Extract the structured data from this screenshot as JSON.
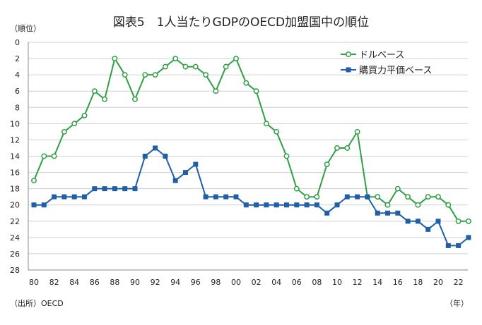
{
  "chart_data": {
    "type": "line",
    "title": "図表5　1人当たりGDPのOECD加盟国中の順位",
    "ylabel": "（順位）",
    "xlabel": "（年）",
    "source": "（出所）OECD",
    "ylim": [
      0,
      28
    ],
    "y_inverted": true,
    "y_ticks": [
      0,
      2,
      4,
      6,
      8,
      10,
      12,
      14,
      16,
      18,
      20,
      22,
      24,
      26,
      28
    ],
    "x_tick_labels": [
      "80",
      "82",
      "84",
      "86",
      "88",
      "90",
      "92",
      "94",
      "96",
      "98",
      "00",
      "02",
      "04",
      "06",
      "08",
      "10",
      "12",
      "14",
      "16",
      "18",
      "20",
      "22"
    ],
    "x": [
      1980,
      1981,
      1982,
      1983,
      1984,
      1985,
      1986,
      1987,
      1988,
      1989,
      1990,
      1991,
      1992,
      1993,
      1994,
      1995,
      1996,
      1997,
      1998,
      1999,
      2000,
      2001,
      2002,
      2003,
      2004,
      2005,
      2006,
      2007,
      2008,
      2009,
      2010,
      2011,
      2012,
      2013,
      2014,
      2015,
      2016,
      2017,
      2018,
      2019,
      2020,
      2021,
      2022,
      2023
    ],
    "grid": true,
    "legend_position": "top-right",
    "series": [
      {
        "name": "ドルベース",
        "color": "#2ea043",
        "marker": "open-circle",
        "values": [
          17,
          14,
          14,
          11,
          10,
          9,
          6,
          7,
          2,
          4,
          7,
          4,
          4,
          3,
          2,
          3,
          3,
          4,
          6,
          3,
          2,
          5,
          6,
          10,
          11,
          14,
          18,
          19,
          19,
          15,
          13,
          13,
          11,
          19,
          19,
          20,
          18,
          19,
          20,
          19,
          19,
          20,
          22,
          22
        ]
      },
      {
        "name": "購買力平価ベース",
        "color": "#1f5fa8",
        "marker": "filled-square",
        "values": [
          20,
          20,
          19,
          19,
          19,
          19,
          18,
          18,
          18,
          18,
          18,
          14,
          13,
          14,
          17,
          16,
          15,
          19,
          19,
          19,
          19,
          20,
          20,
          20,
          20,
          20,
          20,
          20,
          20,
          21,
          20,
          19,
          19,
          19,
          21,
          21,
          21,
          22,
          22,
          23,
          22,
          25,
          25,
          24
        ]
      }
    ]
  }
}
